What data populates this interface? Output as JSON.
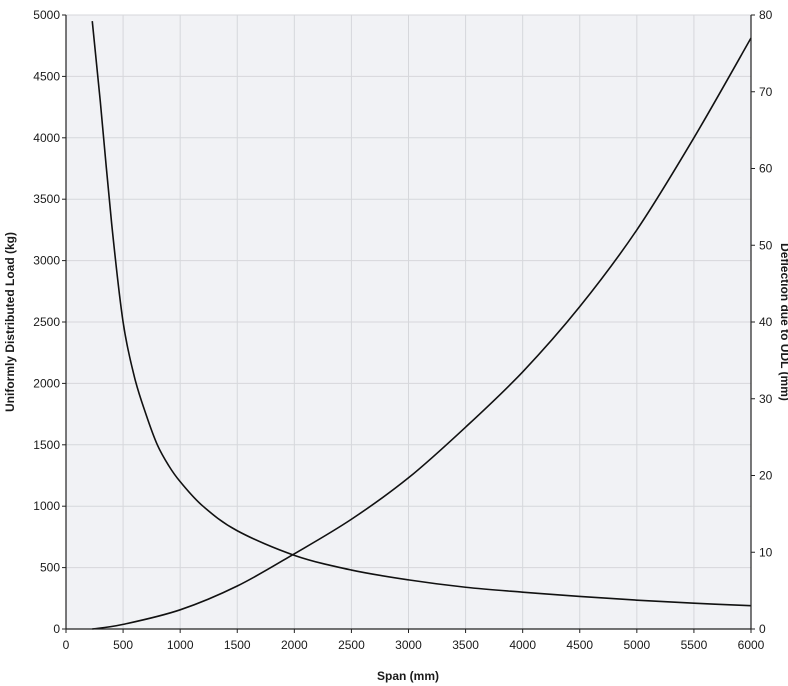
{
  "chart_data": {
    "type": "line",
    "title": "",
    "xlabel": "Span (mm)",
    "ylabel_left": "Uniformly Distributed Load (kg)",
    "ylabel_right": "Deflection due to UDL (mm)",
    "xlim": [
      0,
      6000
    ],
    "ylim_left": [
      0,
      5000
    ],
    "ylim_right": [
      0,
      80
    ],
    "x_ticks": [
      "0",
      "500",
      "1000",
      "1500",
      "2000",
      "2500",
      "3000",
      "3500",
      "4000",
      "4500",
      "5000",
      "5500",
      "6000"
    ],
    "y_left_ticks": [
      "0",
      "500",
      "1000",
      "1500",
      "2000",
      "2500",
      "3000",
      "3500",
      "4000",
      "4500",
      "5000"
    ],
    "y_right_ticks": [
      "0",
      "10",
      "20",
      "30",
      "40",
      "50",
      "60",
      "70",
      "80"
    ],
    "grid": true,
    "legend": "none",
    "series": [
      {
        "axis": "left",
        "x": [
          230,
          300,
          400,
          500,
          600,
          700,
          800,
          900,
          1000,
          1200,
          1500,
          2000,
          2500,
          3000,
          3500,
          4000,
          4500,
          5000,
          5500,
          6000
        ],
        "y": [
          4950,
          4300,
          3300,
          2500,
          2050,
          1750,
          1500,
          1330,
          1200,
          1000,
          800,
          600,
          480,
          400,
          340,
          300,
          265,
          235,
          210,
          190
        ]
      },
      {
        "axis": "right",
        "x": [
          230,
          500,
          1000,
          1500,
          2000,
          2500,
          3000,
          3500,
          4000,
          4500,
          5000,
          5500,
          6000
        ],
        "y": [
          0,
          0.6,
          2.5,
          5.6,
          9.8,
          14.3,
          19.7,
          26.3,
          33.5,
          42,
          52,
          64,
          77
        ]
      }
    ]
  }
}
